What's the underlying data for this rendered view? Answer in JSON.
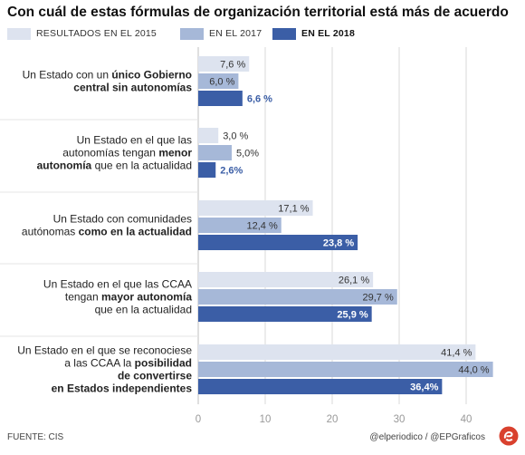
{
  "title": "Con cuál de estas fórmulas de organización territorial está más de acuerdo",
  "source": "FUENTE: CIS",
  "credit": "@elperiodico / @EPGraficos",
  "chart_data": {
    "type": "bar",
    "orientation": "horizontal",
    "xlim": [
      0,
      45
    ],
    "xticks": [
      0,
      10,
      20,
      30,
      40
    ],
    "xtick_labels": [
      "0",
      "10",
      "20",
      "30",
      "40"
    ],
    "grid": true,
    "series": [
      {
        "name": "RESULTADOS EN EL 2015",
        "color": "#dde3ef",
        "label_color": "#333333",
        "bold": false
      },
      {
        "name": "EN EL 2017",
        "color": "#a6b8d8",
        "label_color": "#333333",
        "bold": false
      },
      {
        "name": "EN EL 2018",
        "color": "#3b5ea6",
        "label_color": "#3b5ea6",
        "bold": true
      }
    ],
    "categories": [
      {
        "lines": [
          [
            {
              "t": "Un Estado con un ",
              "b": false
            },
            {
              "t": "único Gobierno",
              "b": true
            }
          ],
          [
            {
              "t": "central sin autonomías",
              "b": true
            }
          ]
        ],
        "values": [
          7.6,
          6.0,
          6.6
        ],
        "labels": [
          "7,6 %",
          "6,0 %",
          "6,6 %"
        ]
      },
      {
        "lines": [
          [
            {
              "t": "Un Estado en el que las",
              "b": false
            }
          ],
          [
            {
              "t": "autonomías tengan ",
              "b": false
            },
            {
              "t": "menor",
              "b": true
            }
          ],
          [
            {
              "t": "autonomía",
              "b": true
            },
            {
              "t": " que en la actualidad",
              "b": false
            }
          ]
        ],
        "values": [
          3.0,
          5.0,
          2.6
        ],
        "labels": [
          "3,0 %",
          "5,0%",
          "2,6%"
        ]
      },
      {
        "lines": [
          [
            {
              "t": "Un Estado con comunidades",
              "b": false
            }
          ],
          [
            {
              "t": "autónomas ",
              "b": false
            },
            {
              "t": "como en la actualidad",
              "b": true
            }
          ]
        ],
        "values": [
          17.1,
          12.4,
          23.8
        ],
        "labels": [
          "17,1 %",
          "12,4 %",
          "23,8 %"
        ]
      },
      {
        "lines": [
          [
            {
              "t": "Un Estado en el que las CCAA",
              "b": false
            }
          ],
          [
            {
              "t": "tengan ",
              "b": false
            },
            {
              "t": "mayor autonomía",
              "b": true
            }
          ],
          [
            {
              "t": "que en la actualidad",
              "b": false
            }
          ]
        ],
        "values": [
          26.1,
          29.7,
          25.9
        ],
        "labels": [
          "26,1 %",
          "29,7 %",
          "25,9 %"
        ]
      },
      {
        "lines": [
          [
            {
              "t": "Un Estado en el que se reconociese",
              "b": false
            }
          ],
          [
            {
              "t": "a las CCAA la ",
              "b": false
            },
            {
              "t": "posibilidad",
              "b": true
            }
          ],
          [
            {
              "t": "de convertirse",
              "b": true
            }
          ],
          [
            {
              "t": "en Estados independientes",
              "b": true
            }
          ]
        ],
        "values": [
          41.4,
          44.0,
          36.4
        ],
        "labels": [
          "41,4 %",
          "44,0 %",
          "36,4%"
        ]
      }
    ]
  }
}
